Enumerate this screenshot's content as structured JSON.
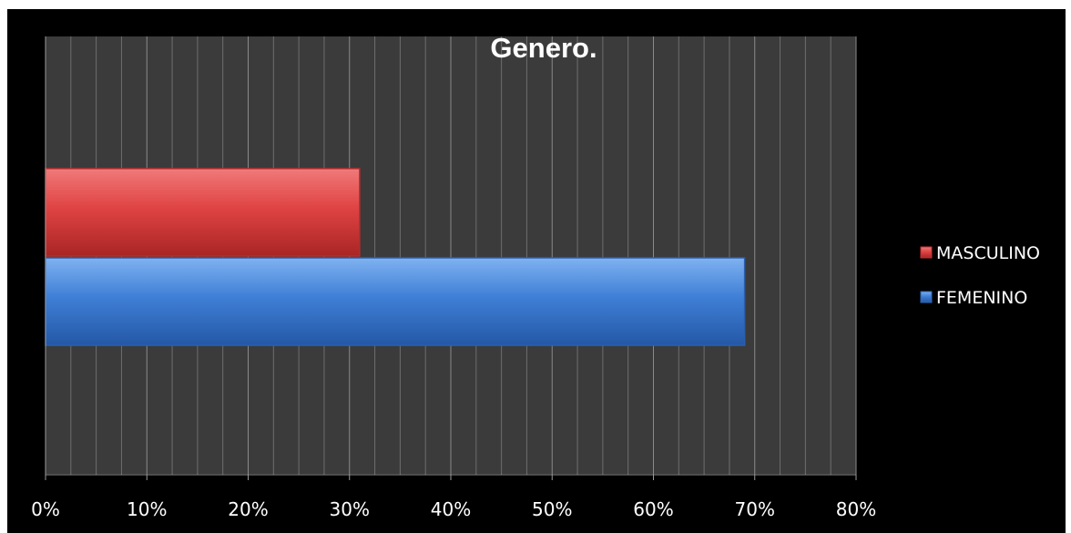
{
  "chart_data": {
    "type": "bar",
    "orientation": "horizontal",
    "title": "Genero.",
    "xlabel": "",
    "ylabel": "",
    "xlim": [
      0,
      0.8
    ],
    "ticks": [
      "0%",
      "10%",
      "20%",
      "30%",
      "40%",
      "50%",
      "60%",
      "70%",
      "80%"
    ],
    "grid": true,
    "legend_position": "right",
    "series": [
      {
        "name": "FEMENINO",
        "value": 0.69,
        "color": "#3f7fd6"
      },
      {
        "name": "MASCULINO",
        "value": 0.31,
        "color": "#e04343"
      }
    ],
    "legend": [
      "MASCULINO",
      "FEMENINO"
    ]
  }
}
